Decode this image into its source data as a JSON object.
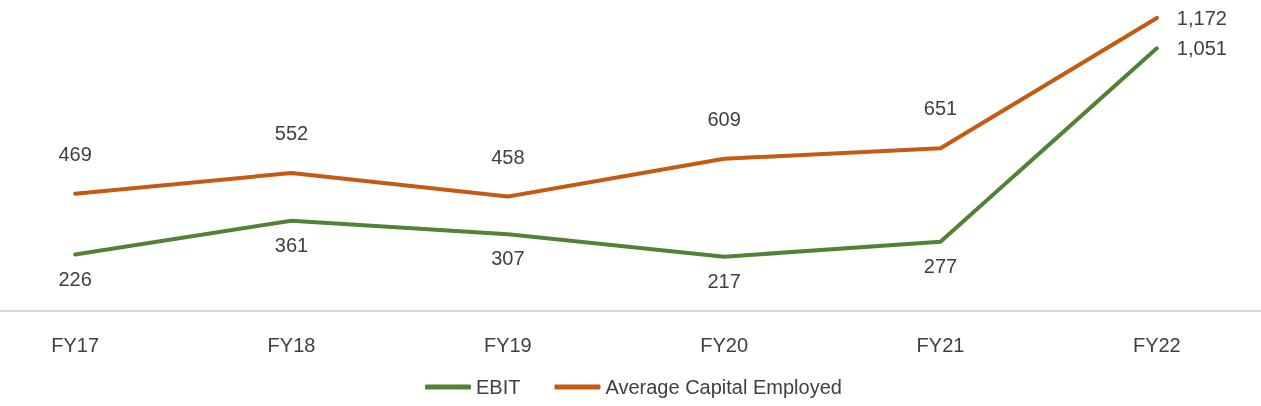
{
  "chart_data": {
    "type": "line",
    "categories": [
      "FY17",
      "FY18",
      "FY19",
      "FY20",
      "FY21",
      "FY22"
    ],
    "series": [
      {
        "name": "EBIT",
        "color": "#548235",
        "values": [
          226,
          361,
          307,
          217,
          277,
          1051
        ],
        "value_labels": [
          "226",
          "361",
          "307",
          "217",
          "277",
          "1,051"
        ]
      },
      {
        "name": "Average Capital Employed",
        "color": "#c55a11",
        "values": [
          469,
          552,
          458,
          609,
          651,
          1172
        ],
        "value_labels": [
          "469",
          "552",
          "458",
          "609",
          "651",
          "1,172"
        ]
      }
    ],
    "tick_labels": "x",
    "grid": false,
    "legend": "bottom",
    "marker": "none",
    "line_style": "solid"
  }
}
